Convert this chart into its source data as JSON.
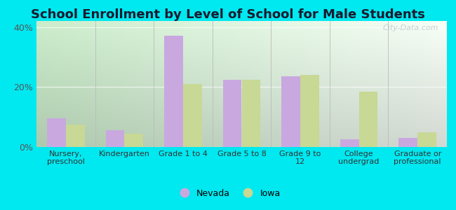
{
  "title": "School Enrollment by Level of School for Male Students",
  "categories": [
    "Nursery,\npreschool",
    "Kindergarten",
    "Grade 1 to 4",
    "Grade 5 to 8",
    "Grade 9 to\n12",
    "College\nundergrad",
    "Graduate or\nprofessional"
  ],
  "nevada": [
    9.5,
    5.5,
    37.0,
    22.5,
    23.5,
    2.5,
    3.0
  ],
  "iowa": [
    7.5,
    4.5,
    21.0,
    22.5,
    24.0,
    18.5,
    5.0
  ],
  "nevada_color": "#c9a8e0",
  "iowa_color": "#c8d895",
  "background_outer": "#00e8f0",
  "grad_top_left": "#c8e8c8",
  "grad_bottom_right": "#f0fff0",
  "ylim": [
    0,
    42
  ],
  "yticks": [
    0,
    20,
    40
  ],
  "ytick_labels": [
    "0%",
    "20%",
    "40%"
  ],
  "bar_width": 0.32,
  "title_fontsize": 13,
  "title_color": "#1a1a2e",
  "watermark": "City-Data.com",
  "sep_color": "#bbbbbb",
  "grid_color": "#dddddd"
}
